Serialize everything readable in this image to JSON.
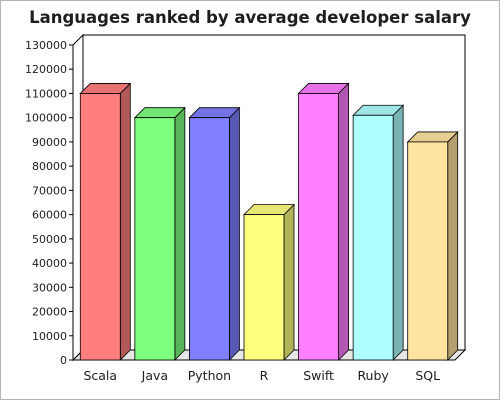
{
  "chart_data": {
    "type": "bar",
    "title": "Languages ranked by average developer salary",
    "xlabel": "",
    "ylabel": "",
    "categories": [
      "Scala",
      "Java",
      "Python",
      "R",
      "Swift",
      "Ruby",
      "SQL"
    ],
    "values": [
      110000,
      100000,
      100000,
      60000,
      110000,
      101000,
      90000
    ],
    "colors": [
      "#ff7f7f",
      "#7fff7f",
      "#7f7fff",
      "#ffff7f",
      "#ff7fff",
      "#afffff",
      "#ffe4a0"
    ],
    "ylim": [
      0,
      130000
    ],
    "ytick_step": 10000,
    "yticks": [
      "0",
      "10000",
      "20000",
      "30000",
      "40000",
      "50000",
      "60000",
      "70000",
      "80000",
      "90000",
      "100000",
      "110000",
      "120000",
      "130000"
    ],
    "grid": false,
    "legend": "none",
    "style": "3d-bars"
  }
}
